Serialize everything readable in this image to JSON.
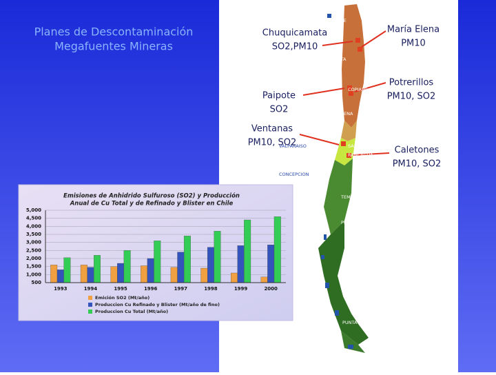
{
  "slide": {
    "title": [
      "Planes de Descontaminación",
      "Megafuentes Mineras"
    ],
    "annotations": [
      {
        "name": "Chuquicamata",
        "pollutants": "SO2,PM10"
      },
      {
        "name": "María Elena",
        "pollutants": "PM10"
      },
      {
        "name": "Paipote",
        "pollutants": "SO2"
      },
      {
        "name": "Potrerillos",
        "pollutants": "PM10, SO2"
      },
      {
        "name": "Ventanas",
        "pollutants": "PM10, SO2"
      },
      {
        "name": "Caletones",
        "pollutants": "PM10, SO2"
      }
    ]
  },
  "map": {
    "cities": [
      "IQUIQUE",
      "ANTOFAGASTA",
      "COPIAPO",
      "LA SERENA",
      "VALPARAISO",
      "SANTIAGO",
      "RANCAGUA",
      "CONCEPCION",
      "TEMUCO",
      "PUERTO MONTT",
      "COYHAIQUE",
      "PUNTA ARENAS"
    ]
  },
  "chart_data": {
    "type": "bar",
    "title": [
      "Emisiones de Anhidrido Sulfuroso (SO2) y Producción",
      "Anual de Cu Total y de Refinado y Blister en Chile"
    ],
    "categories": [
      "1993",
      "1994",
      "1995",
      "1996",
      "1997",
      "1998",
      "1999",
      "2000"
    ],
    "series": [
      {
        "name": "Emición SO2 (Mt/año)",
        "color": "#f0a040",
        "values": [
          1600,
          1600,
          1500,
          1550,
          1450,
          1400,
          1100,
          850
        ]
      },
      {
        "name": "Produccion Cu Refinado y Blister (Mt/año de fino)",
        "color": "#3355bb",
        "values": [
          1300,
          1450,
          1700,
          2000,
          2400,
          2700,
          2800,
          2850
        ]
      },
      {
        "name": "Produccion Cu Total (Mt/año)",
        "color": "#33cc55",
        "values": [
          2050,
          2200,
          2500,
          3100,
          3400,
          3700,
          4400,
          4600
        ]
      }
    ],
    "ylim": [
      500,
      5000
    ],
    "yticks": [
      {
        "value": 500,
        "label": "500"
      },
      {
        "value": 1000,
        "label": "1,000"
      },
      {
        "value": 1500,
        "label": "1,500"
      },
      {
        "value": 2000,
        "label": "2,000"
      },
      {
        "value": 2500,
        "label": "2,500"
      },
      {
        "value": 3000,
        "label": "3,000"
      },
      {
        "value": 3500,
        "label": "3,500"
      },
      {
        "value": 4000,
        "label": "4,000"
      },
      {
        "value": 4500,
        "label": "4,500"
      },
      {
        "value": 5000,
        "label": "5,000"
      }
    ],
    "grid": true
  }
}
